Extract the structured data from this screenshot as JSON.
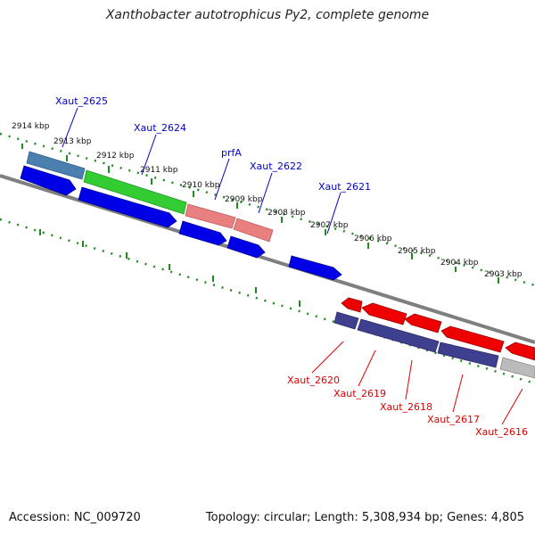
{
  "title": "Xanthobacter autotrophicus Py2, complete genome",
  "footer": {
    "accession": "Accession: NC_009720",
    "summary": "Topology: circular; Length: 5,308,934 bp; Genes: 4,805"
  },
  "colors": {
    "backbone": "#7f7f7f",
    "tick": "#1e8c1e",
    "forward_cds": "#0000e6",
    "reverse_cds": "#ee0000",
    "forward_label": "#0000cc",
    "reverse_label": "#dd0000",
    "feature_blue": "#4a7fb0",
    "feature_green": "#33cc33",
    "feature_pink": "#e88080",
    "feature_purple": "#3f3f8f",
    "feature_grey": "#bbbbbb"
  },
  "kbp_labels": [
    "2914 kbp",
    "2913 kbp",
    "2912 kbp",
    "2911 kbp",
    "2910 kbp",
    "2909 kbp",
    "2908 kbp",
    "2907 kbp",
    "2906 kbp",
    "2905 kbp",
    "2904 kbp",
    "2903 kbp"
  ],
  "forward_genes": [
    "Xaut_2625",
    "Xaut_2624",
    "prfA",
    "Xaut_2622",
    "Xaut_2621"
  ],
  "reverse_genes": [
    "Xaut_2620",
    "Xaut_2619",
    "Xaut_2618",
    "Xaut_2617",
    "Xaut_2616"
  ]
}
